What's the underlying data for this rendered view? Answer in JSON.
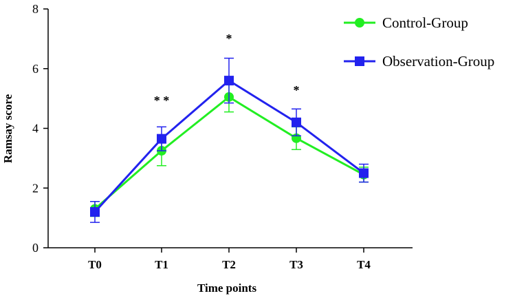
{
  "chart_data": {
    "type": "line",
    "title": "",
    "xlabel": "Time points",
    "ylabel": "Ramsay score",
    "categories": [
      "T0",
      "T1",
      "T2",
      "T3",
      "T4"
    ],
    "ylim": [
      0,
      8
    ],
    "yticks": [
      "0",
      "2",
      "4",
      "6",
      "8"
    ],
    "grid": false,
    "legend_position": "top-right",
    "series": [
      {
        "name": "Control-Group",
        "color": "#22ee22",
        "marker": "circle",
        "values": [
          1.3,
          3.25,
          5.05,
          3.67,
          2.45
        ],
        "errors": [
          0.25,
          0.5,
          0.5,
          0.38,
          0.25
        ]
      },
      {
        "name": "Observation-Group",
        "color": "#2222ee",
        "marker": "square",
        "values": [
          1.2,
          3.65,
          5.6,
          4.2,
          2.5
        ],
        "errors": [
          0.35,
          0.4,
          0.75,
          0.45,
          0.3
        ]
      }
    ],
    "annotations": [
      {
        "category": "T1",
        "text": "* *"
      },
      {
        "category": "T2",
        "text": "*"
      },
      {
        "category": "T3",
        "text": "*"
      }
    ]
  }
}
